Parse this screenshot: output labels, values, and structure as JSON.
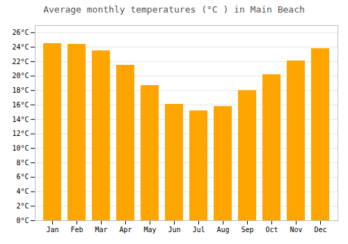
{
  "chart_data": {
    "type": "bar",
    "title": "Average monthly temperatures (°C ) in Main Beach",
    "categories": [
      "Jan",
      "Feb",
      "Mar",
      "Apr",
      "May",
      "Jun",
      "Jul",
      "Aug",
      "Sep",
      "Oct",
      "Nov",
      "Dec"
    ],
    "values": [
      24.5,
      24.4,
      23.5,
      21.5,
      18.7,
      16.1,
      15.2,
      15.8,
      18.0,
      20.2,
      22.1,
      23.8
    ],
    "color": "#FFA500",
    "ylim": [
      0,
      27
    ],
    "yticks": [
      {
        "value": 0,
        "label": "0°C"
      },
      {
        "value": 2,
        "label": "2°C"
      },
      {
        "value": 4,
        "label": "4°C"
      },
      {
        "value": 6,
        "label": "6°C"
      },
      {
        "value": 8,
        "label": "8°C"
      },
      {
        "value": 10,
        "label": "10°C"
      },
      {
        "value": 12,
        "label": "12°C"
      },
      {
        "value": 14,
        "label": "14°C"
      },
      {
        "value": 16,
        "label": "16°C"
      },
      {
        "value": 18,
        "label": "18°C"
      },
      {
        "value": 20,
        "label": "20°C"
      },
      {
        "value": 22,
        "label": "22°C"
      },
      {
        "value": 24,
        "label": "24°C"
      },
      {
        "value": 26,
        "label": "26°C"
      }
    ],
    "grid": true
  }
}
